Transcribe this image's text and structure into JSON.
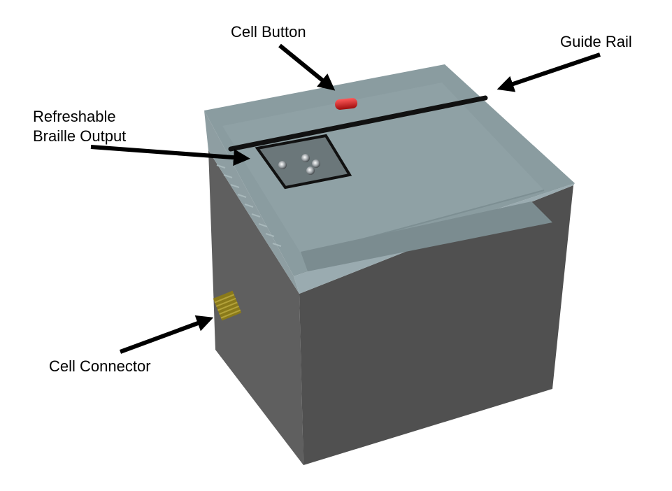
{
  "labels": {
    "cell_button": "Cell Button",
    "guide_rail": "Guide Rail",
    "braille_output_line1": "Refreshable",
    "braille_output_line2": "Braille Output",
    "cell_connector": "Cell Connector"
  },
  "colors": {
    "cube_front": "#4e4e4e",
    "cube_left": "#5e5e5e",
    "lid_top": "#8a9ca0",
    "lid_edge": "#a7b7ba",
    "rail": "#111111",
    "button": "#cc1a1a",
    "connector": "#8a7a1a",
    "arrow": "#000000"
  }
}
